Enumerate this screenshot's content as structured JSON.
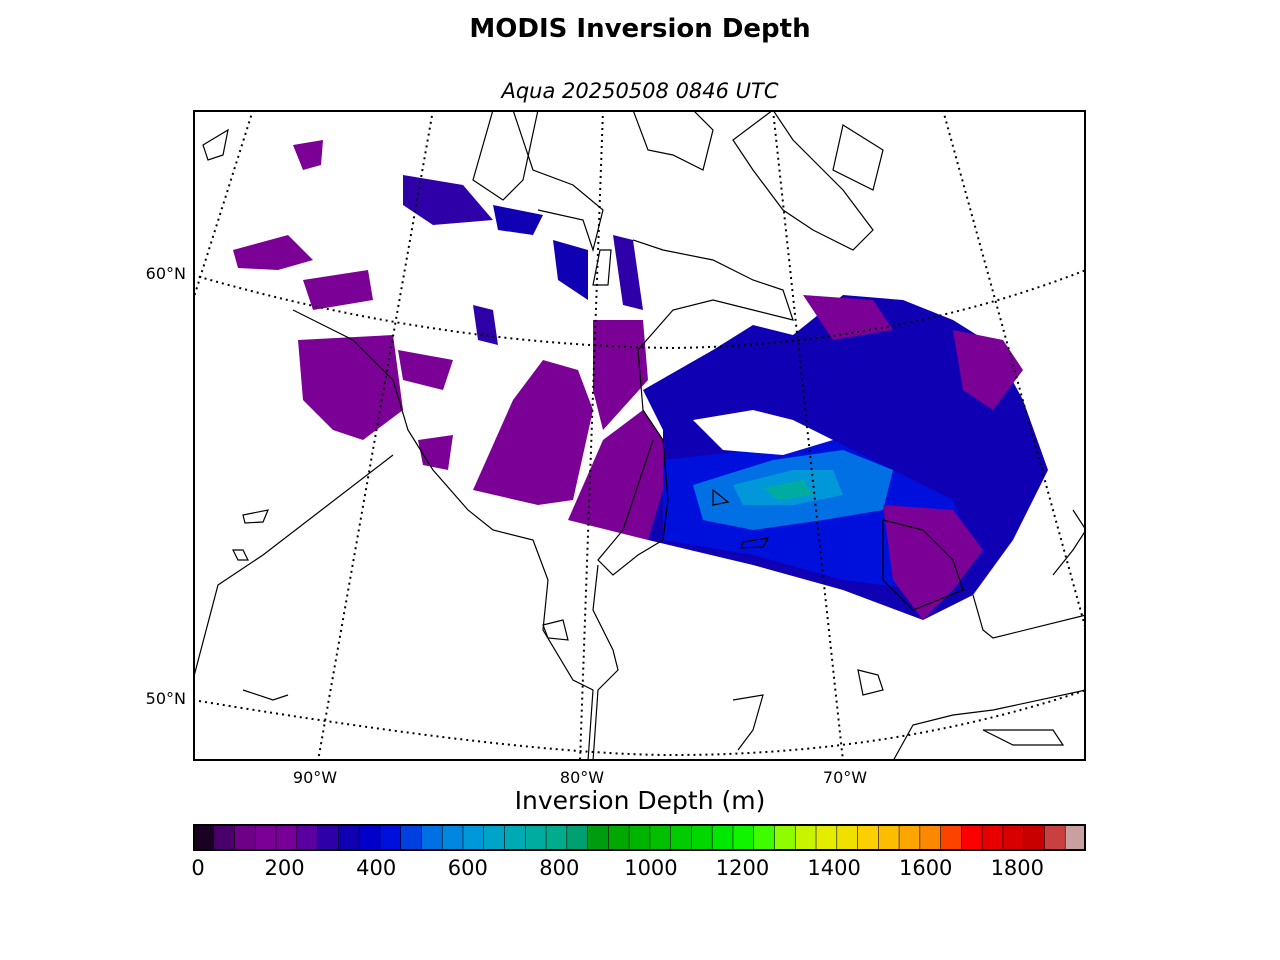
{
  "title": "MODIS Inversion Depth",
  "subtitle": "Aqua 20250508 0846 UTC",
  "map": {
    "lat_labels": [
      "60°N",
      "50°N"
    ],
    "lon_labels": [
      "90°W",
      "80°W",
      "70°W"
    ],
    "projection_outline": "dotted-graticule",
    "coastline_color": "#000000"
  },
  "colorbar": {
    "label": "Inversion Depth (m)",
    "ticks": [
      "0",
      "200",
      "400",
      "600",
      "800",
      "1000",
      "1200",
      "1400",
      "1600",
      "1800"
    ],
    "range": [
      0,
      1950
    ],
    "step": 50,
    "colors": [
      "#1a0022",
      "#4a006a",
      "#6d0086",
      "#7a0096",
      "#780098",
      "#5a00a0",
      "#2e00a8",
      "#1000b4",
      "#0000c8",
      "#0010dc",
      "#0040e0",
      "#0070e4",
      "#0088e0",
      "#0098d8",
      "#00a4c8",
      "#00aab4",
      "#00aca0",
      "#00ac8c",
      "#00a070",
      "#009c10",
      "#00a800",
      "#00b400",
      "#00c000",
      "#00cc00",
      "#00d800",
      "#00e800",
      "#10f400",
      "#40fc00",
      "#90fc00",
      "#c8f400",
      "#e4ec00",
      "#f0e000",
      "#fcd000",
      "#fcbc00",
      "#fca400",
      "#fc8800",
      "#fc4400",
      "#fc0000",
      "#e80000",
      "#d80000",
      "#c80000",
      "#c84040",
      "#c8a0a0"
    ]
  },
  "data_colors": {
    "low": "#7a0096",
    "mid_low": "#2e00a8",
    "mid": "#0010dc",
    "high": "#0098d8",
    "higher": "#00aca0"
  }
}
